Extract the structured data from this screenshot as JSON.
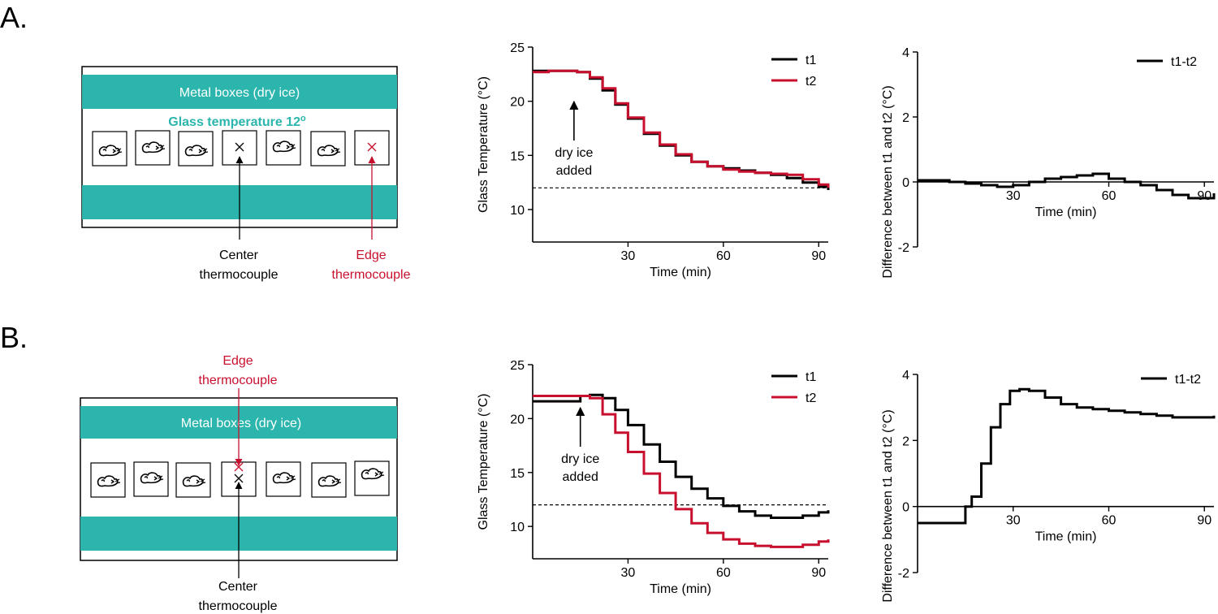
{
  "colors": {
    "teal": "#2bb5ad",
    "red": "#c8102e",
    "black": "#000000",
    "glass_label": "#2bb5ad"
  },
  "panels": [
    {
      "letter": "A.",
      "schematic": {
        "metal_label": "Metal boxes (dry ice)",
        "glass_label": "Glass temperature 12",
        "glass_superscript": "o",
        "center_label": [
          "Center",
          "thermocouple"
        ],
        "edge_label": [
          "Edge",
          "thermocouple"
        ],
        "mouse_icon": "mouse-icon",
        "marker_icon": "x-mark-icon"
      }
    },
    {
      "letter": "B.",
      "schematic": {
        "metal_label": "Metal boxes (dry ice)",
        "center_label": [
          "Center",
          "thermocouple"
        ],
        "edge_label": [
          "Edge",
          "thermocouple"
        ],
        "mouse_icon": "mouse-icon",
        "marker_icon": "x-mark-icon"
      }
    }
  ],
  "chart_data": [
    {
      "id": "A-temp",
      "type": "line",
      "ylabel": "Glass Temperature (°C)",
      "xlabel": "Time (min)",
      "xlim": [
        0,
        93
      ],
      "ylim": [
        7,
        25
      ],
      "xticks": [
        30,
        60,
        90
      ],
      "yticks": [
        10,
        15,
        20,
        25
      ],
      "reference_line": 12,
      "annotation": [
        "dry ice",
        "added"
      ],
      "annotation_x": 13,
      "series": [
        {
          "name": "t1",
          "color": "#000000",
          "x": [
            0,
            5,
            10,
            14,
            18,
            22,
            26,
            30,
            35,
            40,
            45,
            50,
            55,
            60,
            65,
            70,
            75,
            80,
            85,
            90,
            93
          ],
          "y": [
            22.8,
            22.8,
            22.8,
            22.7,
            22.1,
            21.0,
            19.7,
            18.4,
            17.0,
            15.9,
            15.0,
            14.4,
            14.0,
            13.8,
            13.6,
            13.4,
            13.2,
            12.9,
            12.5,
            12.1,
            11.8
          ]
        },
        {
          "name": "t2",
          "color": "#c8102e",
          "x": [
            0,
            5,
            10,
            14,
            18,
            22,
            26,
            30,
            35,
            40,
            45,
            50,
            55,
            60,
            65,
            70,
            75,
            80,
            85,
            90,
            93
          ],
          "y": [
            22.7,
            22.8,
            22.8,
            22.7,
            22.2,
            21.2,
            19.8,
            18.5,
            17.1,
            16.0,
            15.1,
            14.4,
            14.0,
            13.7,
            13.5,
            13.4,
            13.3,
            13.2,
            12.8,
            12.3,
            12.0
          ]
        }
      ]
    },
    {
      "id": "A-diff",
      "type": "line",
      "ylabel": "Difference between t1 and t2 (°C)",
      "xlabel": "Time (min)",
      "xlim": [
        0,
        93
      ],
      "ylim": [
        -2,
        4
      ],
      "xticks": [
        30,
        60,
        90
      ],
      "yticks": [
        -2,
        0,
        2,
        4
      ],
      "series": [
        {
          "name": "t1-t2",
          "color": "#000000",
          "x": [
            0,
            5,
            10,
            15,
            20,
            25,
            30,
            35,
            40,
            45,
            50,
            55,
            60,
            65,
            70,
            75,
            80,
            85,
            90,
            93
          ],
          "y": [
            0.05,
            0.05,
            0.0,
            -0.05,
            -0.1,
            -0.15,
            -0.1,
            0.0,
            0.1,
            0.15,
            0.2,
            0.25,
            0.1,
            0.0,
            -0.1,
            -0.25,
            -0.4,
            -0.5,
            -0.5,
            -0.35
          ]
        }
      ]
    },
    {
      "id": "B-temp",
      "type": "line",
      "ylabel": "Glass Temperature (°C)",
      "xlabel": "Time (min)",
      "xlim": [
        0,
        93
      ],
      "ylim": [
        7,
        25
      ],
      "xticks": [
        30,
        60,
        90
      ],
      "yticks": [
        10,
        15,
        20,
        25
      ],
      "reference_line": 12,
      "annotation": [
        "dry ice",
        "added"
      ],
      "annotation_x": 15,
      "series": [
        {
          "name": "t1",
          "color": "#000000",
          "x": [
            0,
            10,
            15,
            15,
            18,
            22,
            26,
            30,
            35,
            40,
            45,
            50,
            55,
            60,
            65,
            70,
            75,
            80,
            85,
            90,
            93
          ],
          "y": [
            21.6,
            21.6,
            21.6,
            22.1,
            22.2,
            21.9,
            20.8,
            19.4,
            17.6,
            16.0,
            14.6,
            13.5,
            12.6,
            11.9,
            11.4,
            11.0,
            10.8,
            10.8,
            11.0,
            11.3,
            11.5
          ]
        },
        {
          "name": "t2",
          "color": "#c8102e",
          "x": [
            0,
            10,
            15,
            18,
            22,
            26,
            30,
            35,
            40,
            45,
            50,
            55,
            60,
            65,
            70,
            75,
            80,
            85,
            90,
            93
          ],
          "y": [
            22.1,
            22.1,
            22.1,
            21.9,
            20.4,
            18.7,
            16.9,
            14.9,
            13.1,
            11.6,
            10.3,
            9.4,
            8.8,
            8.4,
            8.2,
            8.1,
            8.1,
            8.3,
            8.6,
            8.8
          ]
        }
      ]
    },
    {
      "id": "B-diff",
      "type": "line",
      "ylabel": "Difference between t1 and t2 (°C)",
      "xlabel": "Time (min)",
      "xlim": [
        0,
        93
      ],
      "ylim": [
        -2,
        4
      ],
      "xticks": [
        30,
        60,
        90
      ],
      "yticks": [
        -2,
        0,
        2,
        4
      ],
      "series": [
        {
          "name": "t1-t2",
          "color": "#000000",
          "x": [
            0,
            15,
            15,
            17,
            20,
            23,
            26,
            29,
            32,
            35,
            40,
            45,
            50,
            55,
            60,
            65,
            70,
            75,
            80,
            85,
            90,
            93
          ],
          "y": [
            -0.5,
            -0.5,
            0.0,
            0.3,
            1.3,
            2.4,
            3.1,
            3.5,
            3.55,
            3.5,
            3.3,
            3.1,
            3.0,
            2.95,
            2.9,
            2.85,
            2.8,
            2.75,
            2.7,
            2.7,
            2.7,
            2.75
          ]
        }
      ]
    }
  ]
}
